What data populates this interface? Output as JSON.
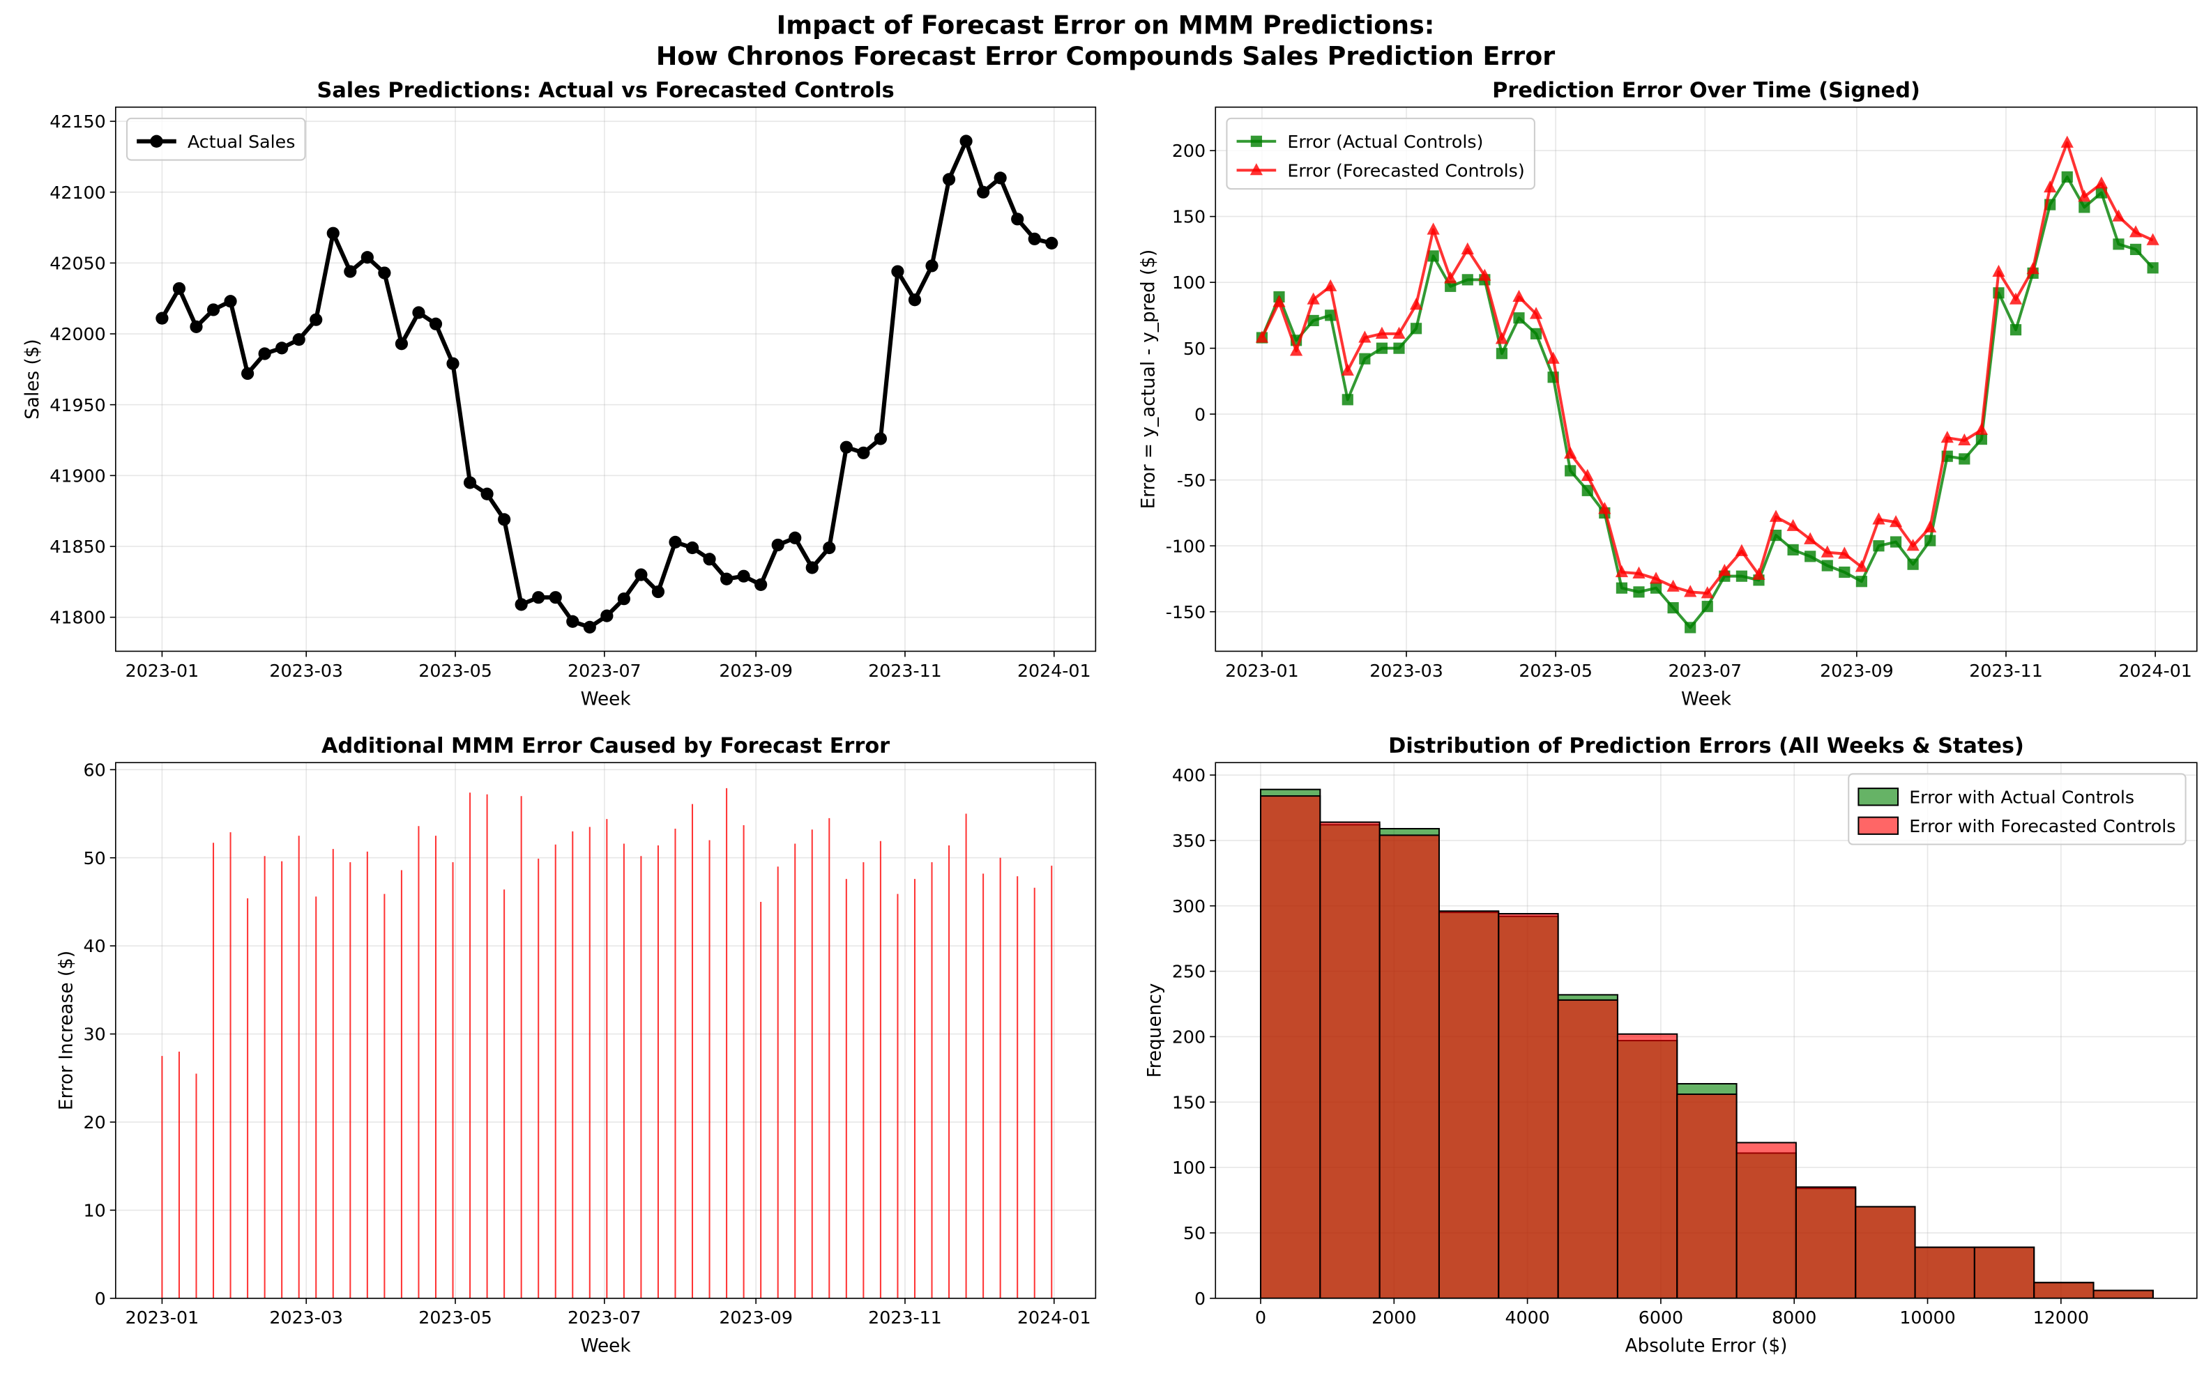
{
  "suptitle": [
    "Impact of Forecast Error on MMM Predictions:",
    "How Chronos Forecast Error Compounds Sales Prediction Error"
  ],
  "chart_data": [
    {
      "type": "line",
      "title": "Sales Predictions: Actual vs Forecasted Controls",
      "xlabel": "Week",
      "ylabel": "Sales ($)",
      "x": [
        "2023-01-01",
        "2023-01-08",
        "2023-01-15",
        "2023-01-22",
        "2023-01-29",
        "2023-02-05",
        "2023-02-12",
        "2023-02-19",
        "2023-02-26",
        "2023-03-05",
        "2023-03-12",
        "2023-03-19",
        "2023-03-26",
        "2023-04-02",
        "2023-04-09",
        "2023-04-16",
        "2023-04-23",
        "2023-04-30",
        "2023-05-07",
        "2023-05-14",
        "2023-05-21",
        "2023-05-28",
        "2023-06-04",
        "2023-06-11",
        "2023-06-18",
        "2023-06-25",
        "2023-07-02",
        "2023-07-09",
        "2023-07-16",
        "2023-07-23",
        "2023-07-30",
        "2023-08-06",
        "2023-08-13",
        "2023-08-20",
        "2023-08-27",
        "2023-09-03",
        "2023-09-10",
        "2023-09-17",
        "2023-09-24",
        "2023-10-01",
        "2023-10-08",
        "2023-10-15",
        "2023-10-22",
        "2023-10-29",
        "2023-11-05",
        "2023-11-12",
        "2023-11-19",
        "2023-11-26",
        "2023-12-03",
        "2023-12-10",
        "2023-12-17",
        "2023-12-24",
        "2023-12-31"
      ],
      "series": [
        {
          "name": "Actual Sales",
          "color": "black",
          "marker": "circle",
          "alpha": 1,
          "width": 3,
          "values": [
            42011,
            42032,
            42005,
            42017,
            42023,
            41972,
            41986,
            41990,
            41996,
            42010,
            42071,
            42044,
            42054,
            42043,
            41993,
            42015,
            42007,
            41979,
            41895,
            41887,
            41869,
            41809,
            41814,
            41814,
            41797,
            41793,
            41801,
            41813,
            41830,
            41818,
            41853,
            41849,
            41841,
            41827,
            41829,
            41823,
            41851,
            41856,
            41835,
            41849,
            41920,
            41916,
            41926,
            42044,
            42024,
            42048,
            42109,
            42136,
            42100,
            42110,
            42081,
            42067,
            42064
          ]
        }
      ],
      "xlim": [
        "2022-12-13",
        "2024-01-18"
      ],
      "xticks": [
        {
          "value": "2023-01-01",
          "label": "2023-01"
        },
        {
          "value": "2023-03-01",
          "label": "2023-03"
        },
        {
          "value": "2023-05-01",
          "label": "2023-05"
        },
        {
          "value": "2023-07-01",
          "label": "2023-07"
        },
        {
          "value": "2023-09-01",
          "label": "2023-09"
        },
        {
          "value": "2023-11-01",
          "label": "2023-11"
        },
        {
          "value": "2024-01-01",
          "label": "2024-01"
        }
      ],
      "ylim": [
        41776,
        42160
      ],
      "yticks": [
        41800,
        41850,
        41900,
        41950,
        42000,
        42050,
        42100,
        42150
      ],
      "grid": true,
      "legend": "upper left"
    },
    {
      "type": "line",
      "title": "Prediction Error Over Time (Signed)",
      "xlabel": "Week",
      "ylabel": "Error = y_actual - y_pred ($)",
      "x": [
        "2023-01-01",
        "2023-01-08",
        "2023-01-15",
        "2023-01-22",
        "2023-01-29",
        "2023-02-05",
        "2023-02-12",
        "2023-02-19",
        "2023-02-26",
        "2023-03-05",
        "2023-03-12",
        "2023-03-19",
        "2023-03-26",
        "2023-04-02",
        "2023-04-09",
        "2023-04-16",
        "2023-04-23",
        "2023-04-30",
        "2023-05-07",
        "2023-05-14",
        "2023-05-21",
        "2023-05-28",
        "2023-06-04",
        "2023-06-11",
        "2023-06-18",
        "2023-06-25",
        "2023-07-02",
        "2023-07-09",
        "2023-07-16",
        "2023-07-23",
        "2023-07-30",
        "2023-08-06",
        "2023-08-13",
        "2023-08-20",
        "2023-08-27",
        "2023-09-03",
        "2023-09-10",
        "2023-09-17",
        "2023-09-24",
        "2023-10-01",
        "2023-10-08",
        "2023-10-15",
        "2023-10-22",
        "2023-10-29",
        "2023-11-05",
        "2023-11-12",
        "2023-11-19",
        "2023-11-26",
        "2023-12-03",
        "2023-12-10",
        "2023-12-17",
        "2023-12-24",
        "2023-12-31"
      ],
      "series": [
        {
          "name": "Error (Actual Controls)",
          "color": "green",
          "marker": "square",
          "alpha": 0.8,
          "width": 2,
          "values": [
            58,
            89,
            56,
            71,
            75,
            11,
            42,
            50,
            50,
            65,
            120,
            97,
            102,
            102,
            46,
            73,
            61,
            28,
            -43,
            -58,
            -75,
            -132,
            -135,
            -132,
            -147,
            -162,
            -146,
            -123,
            -123,
            -126,
            -92,
            -103,
            -108,
            -115,
            -120,
            -127,
            -100,
            -97,
            -114,
            -96,
            -32,
            -34,
            -19,
            92,
            64,
            107,
            159,
            180,
            157,
            168,
            129,
            125,
            111
          ]
        },
        {
          "name": "Error (Forecasted Controls)",
          "color": "red",
          "marker": "triangle",
          "alpha": 0.8,
          "width": 2,
          "values": [
            58,
            85,
            48,
            87,
            97,
            33,
            58,
            61,
            61,
            83,
            140,
            103,
            125,
            105,
            57,
            89,
            76,
            42,
            -30,
            -47,
            -72,
            -120,
            -121,
            -125,
            -131,
            -135,
            -136,
            -119,
            -104,
            -122,
            -78,
            -85,
            -95,
            -105,
            -106,
            -116,
            -80,
            -82,
            -100,
            -86,
            -18,
            -20,
            -12,
            108,
            87,
            110,
            172,
            206,
            165,
            175,
            150,
            138,
            132
          ]
        }
      ],
      "xlim": [
        "2022-12-13",
        "2024-01-18"
      ],
      "xticks": [
        {
          "value": "2023-01-01",
          "label": "2023-01"
        },
        {
          "value": "2023-03-01",
          "label": "2023-03"
        },
        {
          "value": "2023-05-01",
          "label": "2023-05"
        },
        {
          "value": "2023-07-01",
          "label": "2023-07"
        },
        {
          "value": "2023-09-01",
          "label": "2023-09"
        },
        {
          "value": "2023-11-01",
          "label": "2023-11"
        },
        {
          "value": "2024-01-01",
          "label": "2024-01"
        }
      ],
      "ylim": [
        -180,
        233
      ],
      "yticks": [
        -150,
        -100,
        -50,
        0,
        50,
        100,
        150,
        200
      ],
      "grid": true,
      "legend": "upper left"
    },
    {
      "type": "bar",
      "title": "Additional MMM Error Caused by Forecast Error",
      "xlabel": "Week",
      "ylabel": "Error Increase ($)",
      "x": [
        "2023-01-01",
        "2023-01-08",
        "2023-01-15",
        "2023-01-22",
        "2023-01-29",
        "2023-02-05",
        "2023-02-12",
        "2023-02-19",
        "2023-02-26",
        "2023-03-05",
        "2023-03-12",
        "2023-03-19",
        "2023-03-26",
        "2023-04-02",
        "2023-04-09",
        "2023-04-16",
        "2023-04-23",
        "2023-04-30",
        "2023-05-07",
        "2023-05-14",
        "2023-05-21",
        "2023-05-28",
        "2023-06-04",
        "2023-06-11",
        "2023-06-18",
        "2023-06-25",
        "2023-07-02",
        "2023-07-09",
        "2023-07-16",
        "2023-07-23",
        "2023-07-30",
        "2023-08-06",
        "2023-08-13",
        "2023-08-20",
        "2023-08-27",
        "2023-09-03",
        "2023-09-10",
        "2023-09-17",
        "2023-09-24",
        "2023-10-01",
        "2023-10-08",
        "2023-10-15",
        "2023-10-22",
        "2023-10-29",
        "2023-11-05",
        "2023-11-12",
        "2023-11-19",
        "2023-11-26",
        "2023-12-03",
        "2023-12-10",
        "2023-12-17",
        "2023-12-24",
        "2023-12-31"
      ],
      "values": [
        27.5,
        28,
        25.5,
        51.7,
        52.9,
        45.4,
        50.2,
        49.6,
        52.5,
        45.6,
        51,
        49.5,
        50.7,
        45.9,
        48.6,
        53.6,
        52.5,
        49.5,
        57.4,
        57.2,
        46.4,
        57,
        49.9,
        51.5,
        53,
        53.5,
        54.4,
        51.6,
        50.2,
        51.4,
        53.3,
        56.1,
        52,
        57.9,
        53.7,
        45,
        49,
        51.6,
        53.2,
        54.5,
        47.6,
        49.5,
        51.9,
        45.9,
        47.6,
        49.5,
        51.4,
        55,
        48.2,
        50,
        47.9,
        46.6,
        49.1
      ],
      "color": "red",
      "alpha": 0.8,
      "xlim": [
        "2022-12-13",
        "2024-01-18"
      ],
      "xticks": [
        {
          "value": "2023-01-01",
          "label": "2023-01"
        },
        {
          "value": "2023-03-01",
          "label": "2023-03"
        },
        {
          "value": "2023-05-01",
          "label": "2023-05"
        },
        {
          "value": "2023-07-01",
          "label": "2023-07"
        },
        {
          "value": "2023-09-01",
          "label": "2023-09"
        },
        {
          "value": "2023-11-01",
          "label": "2023-11"
        },
        {
          "value": "2024-01-01",
          "label": "2024-01"
        }
      ],
      "ylim": [
        0,
        60.8
      ],
      "yticks": [
        0,
        10,
        20,
        30,
        40,
        50,
        60
      ],
      "grid": true
    },
    {
      "type": "histogram",
      "title": "Distribution of Prediction Errors (All Weeks & States)",
      "xlabel": "Absolute Error ($)",
      "ylabel": "Frequency",
      "bins": [
        0,
        892,
        1784,
        2676,
        3568,
        4460,
        5352,
        6244,
        7136,
        8028,
        8920,
        9812,
        10704,
        11596,
        12488,
        13380
      ],
      "series": [
        {
          "name": "Error with Actual Controls",
          "color": "green",
          "alpha": 0.6,
          "values": [
            389,
            362,
            359,
            295,
            292,
            232,
            197,
            164,
            111,
            84,
            70,
            39,
            39,
            12,
            6
          ]
        },
        {
          "name": "Error with Forecasted Controls",
          "color": "red",
          "alpha": 0.6,
          "values": [
            384,
            364,
            354,
            296,
            294,
            228,
            202,
            156,
            119,
            85,
            70,
            39,
            39,
            12,
            6
          ]
        }
      ],
      "xlim": [
        -677,
        14038
      ],
      "xticks": [
        0,
        2000,
        4000,
        6000,
        8000,
        10000,
        12000
      ],
      "ylim": [
        0,
        409.5
      ],
      "yticks": [
        0,
        50,
        100,
        150,
        200,
        250,
        300,
        350,
        400
      ],
      "grid": true,
      "legend": "upper right"
    }
  ]
}
